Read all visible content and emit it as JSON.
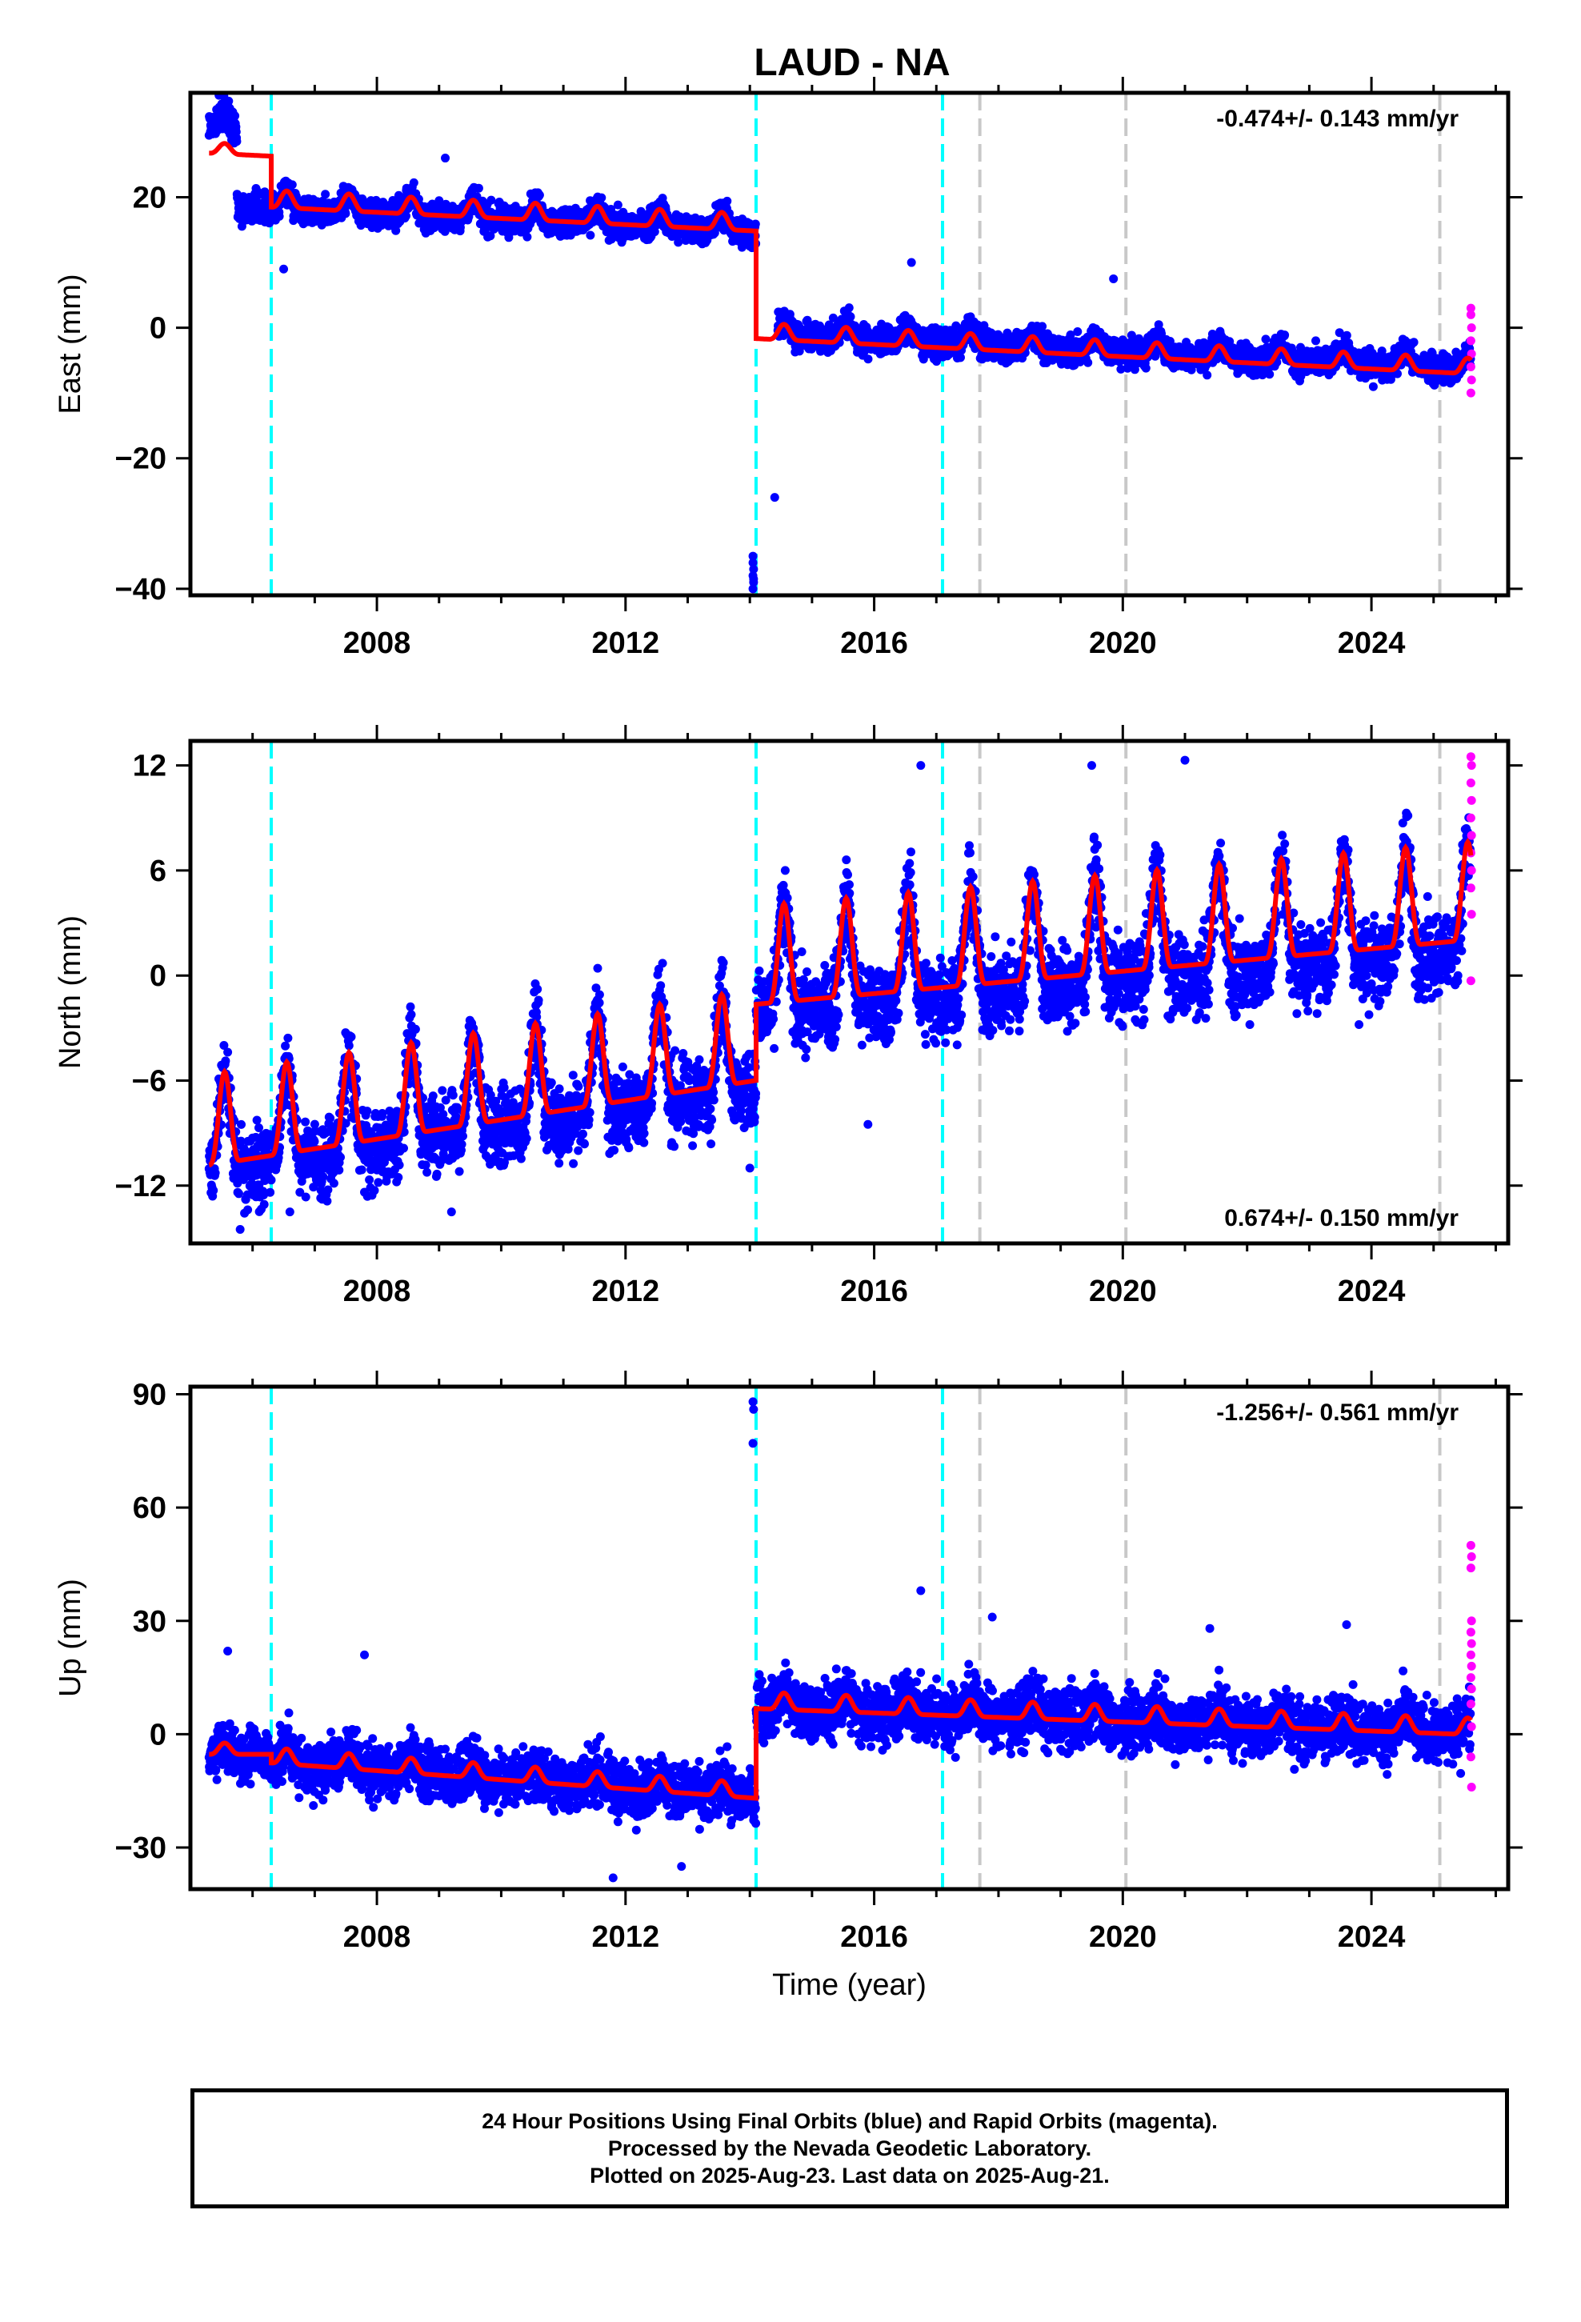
{
  "title": "LAUD - NA",
  "colors": {
    "final_points": "#0000ff",
    "rapid_points": "#ff00ff",
    "model": "#ff0000",
    "equipment_change": "#00ffff",
    "other_event": "#c8c8c8"
  },
  "footer": {
    "line1": "24 Hour Positions Using Final Orbits (blue) and Rapid Orbits (magenta).",
    "line2": "Processed by the Nevada Geodetic Laboratory.",
    "line3": "Plotted on 2025-Aug-23. Last data on 2025-Aug-21."
  },
  "chart_data": [
    {
      "type": "scatter",
      "component": "East",
      "ylabel": "East (mm)",
      "xlabel": "",
      "xlim": [
        2005.0,
        2026.2
      ],
      "ylim": [
        -41,
        36
      ],
      "yticks": [
        -40,
        -20,
        0,
        20
      ],
      "xticks": [
        2008,
        2012,
        2016,
        2020,
        2024
      ],
      "rate_label": "-0.474+/- 0.143 mm/yr",
      "rate_position": "top-right",
      "event_lines_cyan": [
        2006.3,
        2014.1,
        2017.1
      ],
      "event_lines_gray": [
        2017.7,
        2020.05,
        2025.1
      ],
      "segments": [
        {
          "start": 2005.3,
          "end": 2005.75,
          "offset": 31.5,
          "trend": -0.47,
          "annual": 1.0,
          "spread": 1.6
        },
        {
          "start": 2005.75,
          "end": 2006.3,
          "offset": 19.0,
          "trend": -0.47,
          "annual": 1.0,
          "spread": 1.6
        },
        {
          "start": 2006.3,
          "end": 2014.1,
          "offset": 19.0,
          "trend": -0.47,
          "annual": 1.3,
          "spread": 1.5
        },
        {
          "start": 2014.45,
          "end": 2025.6,
          "offset": -0.5,
          "trend": -0.47,
          "annual": 1.2,
          "spread": 1.5
        }
      ],
      "model": {
        "pieces": [
          {
            "start": 2005.3,
            "end": 2006.3,
            "offset": 27.2,
            "trend": -0.47,
            "annual": 0.8
          },
          {
            "start": 2006.3,
            "end": 2014.1,
            "offset": 19.2,
            "trend": -0.47,
            "annual": 1.3
          },
          {
            "start": 2014.1,
            "end": 2025.6,
            "offset": -1.0,
            "trend": -0.47,
            "annual": 1.2
          }
        ]
      },
      "outliers": [
        {
          "x": 2014.05,
          "y": -35
        },
        {
          "x": 2014.05,
          "y": -36
        },
        {
          "x": 2014.06,
          "y": -37
        },
        {
          "x": 2014.05,
          "y": -38
        },
        {
          "x": 2014.06,
          "y": -39
        },
        {
          "x": 2014.05,
          "y": -40
        },
        {
          "x": 2014.06,
          "y": -38.5
        },
        {
          "x": 2014.4,
          "y": -26
        },
        {
          "x": 2006.5,
          "y": 9
        },
        {
          "x": 2016.6,
          "y": 10
        },
        {
          "x": 2019.85,
          "y": 7.5
        },
        {
          "x": 2009.1,
          "y": 26
        }
      ],
      "rapid_points": [
        {
          "x": 2025.6,
          "y": 3
        },
        {
          "x": 2025.6,
          "y": 2
        },
        {
          "x": 2025.61,
          "y": 0
        },
        {
          "x": 2025.6,
          "y": -2
        },
        {
          "x": 2025.61,
          "y": -4
        },
        {
          "x": 2025.6,
          "y": -6
        },
        {
          "x": 2025.61,
          "y": -8
        },
        {
          "x": 2025.6,
          "y": -10
        }
      ]
    },
    {
      "type": "scatter",
      "component": "North",
      "ylabel": "North (mm)",
      "xlabel": "",
      "xlim": [
        2005.0,
        2026.2
      ],
      "ylim": [
        -15.3,
        13.4
      ],
      "yticks": [
        -12,
        -6,
        0,
        6,
        12
      ],
      "xticks": [
        2008,
        2012,
        2016,
        2020,
        2024
      ],
      "rate_label": "0.674+/- 0.150 mm/yr",
      "rate_position": "bottom-right",
      "event_lines_cyan": [
        2006.3,
        2014.1,
        2017.1
      ],
      "event_lines_gray": [
        2017.7,
        2020.05,
        2025.1
      ],
      "segments": [
        {
          "start": 2005.3,
          "end": 2014.1,
          "offset": -9.8,
          "trend": 0.55,
          "annual": 2.8,
          "spread": 1.5
        },
        {
          "start": 2014.1,
          "end": 2025.6,
          "offset": -0.6,
          "trend": 0.32,
          "annual": 3.0,
          "spread": 1.6
        }
      ],
      "model": {
        "pieces": [
          {
            "start": 2005.3,
            "end": 2014.1,
            "offset": -9.4,
            "trend": 0.55,
            "annual": 2.6
          },
          {
            "start": 2014.1,
            "end": 2025.6,
            "offset": -0.1,
            "trend": 0.32,
            "annual": 2.8
          }
        ]
      },
      "outliers": [
        {
          "x": 2016.75,
          "y": 12
        },
        {
          "x": 2021.0,
          "y": 12.3
        },
        {
          "x": 2015.9,
          "y": -8.5
        },
        {
          "x": 2009.2,
          "y": -13.5
        },
        {
          "x": 2005.8,
          "y": -14.5
        },
        {
          "x": 2006.6,
          "y": -13.5
        },
        {
          "x": 2019.5,
          "y": 12
        },
        {
          "x": 2023.8,
          "y": -2.8
        },
        {
          "x": 2014.0,
          "y": -11
        }
      ],
      "rapid_points": [
        {
          "x": 2025.6,
          "y": 12.5
        },
        {
          "x": 2025.61,
          "y": 12
        },
        {
          "x": 2025.6,
          "y": 11
        },
        {
          "x": 2025.61,
          "y": 10
        },
        {
          "x": 2025.6,
          "y": 9
        },
        {
          "x": 2025.61,
          "y": 8
        },
        {
          "x": 2025.6,
          "y": 7
        },
        {
          "x": 2025.61,
          "y": 6
        },
        {
          "x": 2025.6,
          "y": 5
        },
        {
          "x": 2025.61,
          "y": 3.5
        },
        {
          "x": 2025.6,
          "y": -0.3
        }
      ]
    },
    {
      "type": "scatter",
      "component": "Up",
      "ylabel": "Up (mm)",
      "xlabel": "Time (year)",
      "xlim": [
        2005.0,
        2026.2
      ],
      "ylim": [
        -41,
        92
      ],
      "yticks": [
        -30,
        0,
        30,
        60,
        90
      ],
      "xticks": [
        2008,
        2012,
        2016,
        2020,
        2024
      ],
      "rate_label": "-1.256+/- 0.561 mm/yr",
      "rate_position": "top-right",
      "event_lines_cyan": [
        2006.3,
        2014.1,
        2017.1
      ],
      "event_lines_gray": [
        2017.7,
        2020.05,
        2025.1
      ],
      "segments": [
        {
          "start": 2005.3,
          "end": 2006.3,
          "offset": -5.0,
          "trend": 0,
          "annual": 1.5,
          "spread": 4.5
        },
        {
          "start": 2006.3,
          "end": 2014.1,
          "offset": -6.5,
          "trend": -1.2,
          "annual": 2.0,
          "spread": 5.0
        },
        {
          "start": 2014.1,
          "end": 2025.6,
          "offset": 8.0,
          "trend": -0.6,
          "annual": 2.5,
          "spread": 5.5
        }
      ],
      "model": {
        "pieces": [
          {
            "start": 2005.3,
            "end": 2006.3,
            "offset": -4.5,
            "trend": 0,
            "annual": 1.5
          },
          {
            "start": 2006.3,
            "end": 2014.1,
            "offset": -6.5,
            "trend": -1.2,
            "annual": 2.0
          },
          {
            "start": 2014.1,
            "end": 2025.6,
            "offset": 8.0,
            "trend": -0.6,
            "annual": 2.2
          }
        ]
      },
      "outliers": [
        {
          "x": 2014.05,
          "y": 88
        },
        {
          "x": 2014.06,
          "y": 86
        },
        {
          "x": 2014.05,
          "y": 77
        },
        {
          "x": 2016.75,
          "y": 38
        },
        {
          "x": 2005.6,
          "y": 22
        },
        {
          "x": 2007.8,
          "y": 21
        },
        {
          "x": 2017.9,
          "y": 31
        },
        {
          "x": 2023.6,
          "y": 29
        },
        {
          "x": 2021.4,
          "y": 28
        },
        {
          "x": 2012.9,
          "y": -35
        },
        {
          "x": 2011.8,
          "y": -38
        }
      ],
      "rapid_points": [
        {
          "x": 2025.6,
          "y": 50
        },
        {
          "x": 2025.61,
          "y": 47
        },
        {
          "x": 2025.6,
          "y": 44
        },
        {
          "x": 2025.61,
          "y": 30
        },
        {
          "x": 2025.6,
          "y": 27
        },
        {
          "x": 2025.61,
          "y": 24
        },
        {
          "x": 2025.6,
          "y": 21
        },
        {
          "x": 2025.61,
          "y": 18
        },
        {
          "x": 2025.6,
          "y": 15
        },
        {
          "x": 2025.61,
          "y": 12
        },
        {
          "x": 2025.6,
          "y": 8
        },
        {
          "x": 2025.61,
          "y": 2
        },
        {
          "x": 2025.6,
          "y": -6
        },
        {
          "x": 2025.61,
          "y": -14
        }
      ]
    }
  ]
}
